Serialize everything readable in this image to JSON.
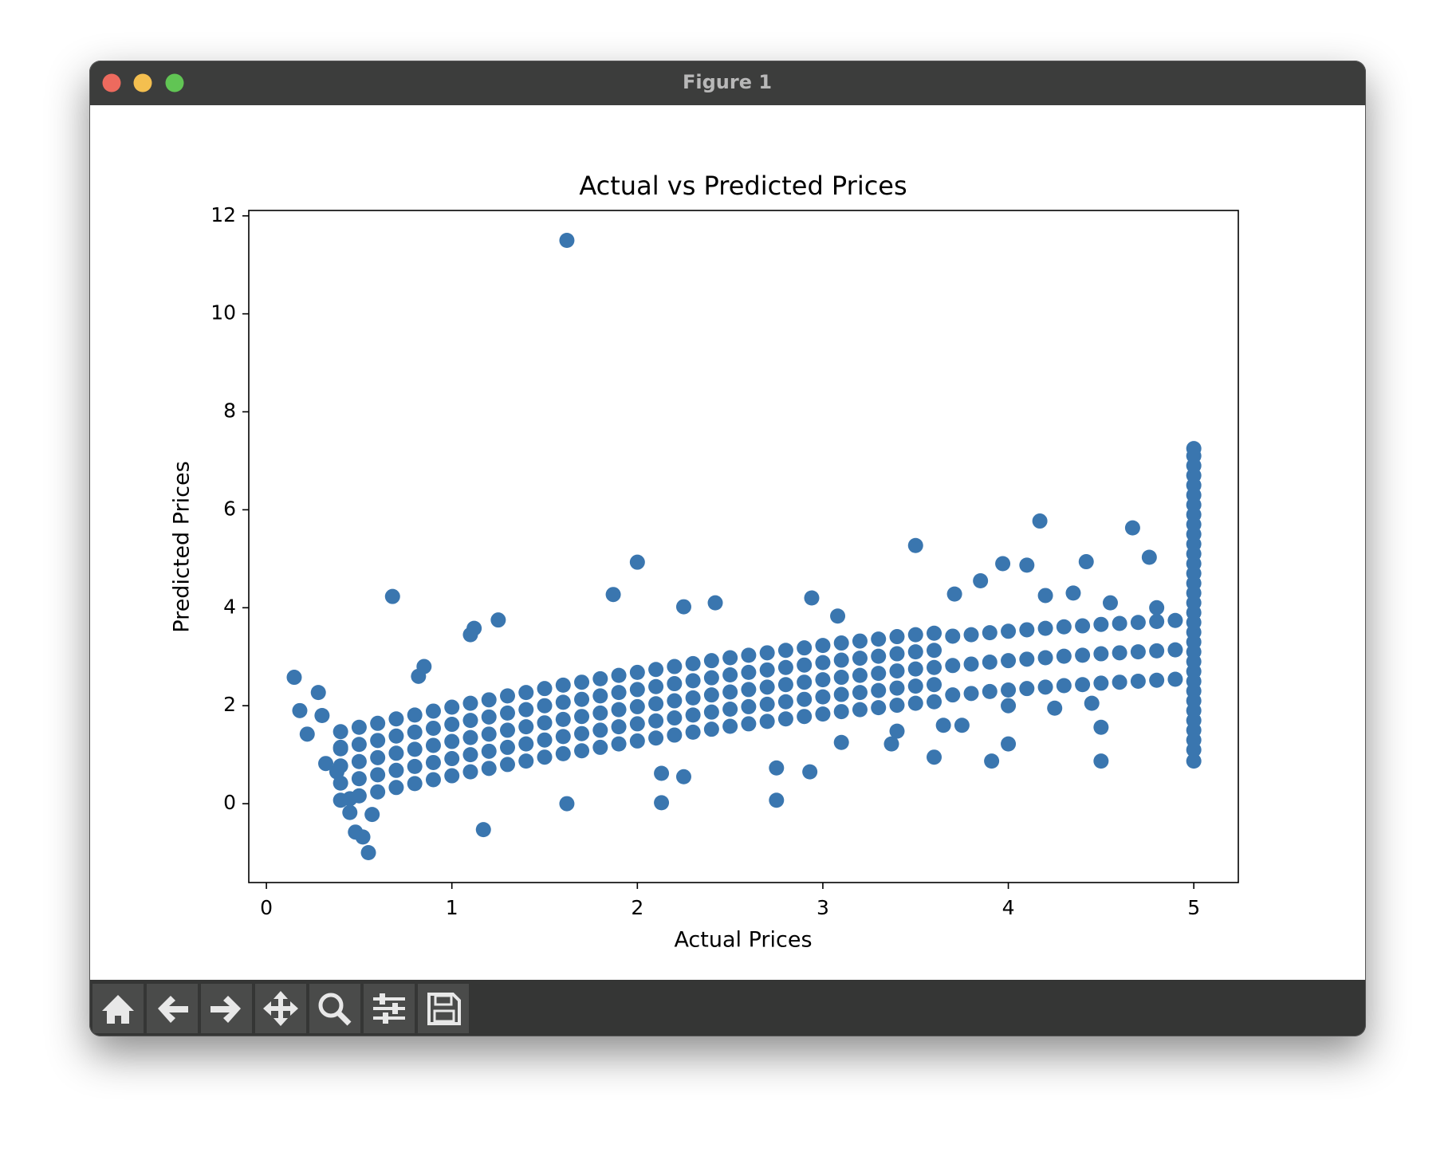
{
  "window": {
    "title": "Figure 1"
  },
  "chart_data": {
    "type": "scatter",
    "title": "Actual vs Predicted Prices",
    "x_label": "Actual Prices",
    "y_label": "Predicted Prices",
    "color": "#3a76af",
    "xlim": [
      -0.095,
      5.24
    ],
    "ylim": [
      -1.61,
      12.11
    ],
    "xticks": [
      0,
      1,
      2,
      3,
      4,
      5
    ],
    "yticks": [
      0,
      2,
      4,
      6,
      8,
      10,
      12
    ],
    "x": [
      0.4,
      0.4,
      0.4,
      0.4,
      0.4,
      0.5,
      0.5,
      0.5,
      0.5,
      0.5,
      0.6,
      0.6,
      0.6,
      0.6,
      0.6,
      0.7,
      0.7,
      0.7,
      0.7,
      0.7,
      0.8,
      0.8,
      0.8,
      0.8,
      0.8,
      0.9,
      0.9,
      0.9,
      0.9,
      0.9,
      1.0,
      1.0,
      1.0,
      1.0,
      1.0,
      1.1,
      1.1,
      1.1,
      1.1,
      1.1,
      1.2,
      1.2,
      1.2,
      1.2,
      1.2,
      1.3,
      1.3,
      1.3,
      1.3,
      1.3,
      1.4,
      1.4,
      1.4,
      1.4,
      1.4,
      1.5,
      1.5,
      1.5,
      1.5,
      1.5,
      1.6,
      1.6,
      1.6,
      1.6,
      1.6,
      1.7,
      1.7,
      1.7,
      1.7,
      1.7,
      1.8,
      1.8,
      1.8,
      1.8,
      1.8,
      1.9,
      1.9,
      1.9,
      1.9,
      1.9,
      2.0,
      2.0,
      2.0,
      2.0,
      2.0,
      2.1,
      2.1,
      2.1,
      2.1,
      2.1,
      2.2,
      2.2,
      2.2,
      2.2,
      2.2,
      2.3,
      2.3,
      2.3,
      2.3,
      2.3,
      2.4,
      2.4,
      2.4,
      2.4,
      2.4,
      2.5,
      2.5,
      2.5,
      2.5,
      2.5,
      2.6,
      2.6,
      2.6,
      2.6,
      2.6,
      2.7,
      2.7,
      2.7,
      2.7,
      2.7,
      2.8,
      2.8,
      2.8,
      2.8,
      2.8,
      2.9,
      2.9,
      2.9,
      2.9,
      2.9,
      3.0,
      3.0,
      3.0,
      3.0,
      3.0,
      3.1,
      3.1,
      3.1,
      3.1,
      3.1,
      3.2,
      3.2,
      3.2,
      3.2,
      3.2,
      3.3,
      3.3,
      3.3,
      3.3,
      3.3,
      3.4,
      3.4,
      3.4,
      3.4,
      3.4,
      3.5,
      3.5,
      3.5,
      3.5,
      3.5,
      3.6,
      3.6,
      3.6,
      3.6,
      3.6,
      3.7,
      3.7,
      3.7,
      3.8,
      3.8,
      3.8,
      3.9,
      3.9,
      3.9,
      4.0,
      4.0,
      4.0,
      4.1,
      4.1,
      4.1,
      4.2,
      4.2,
      4.2,
      4.3,
      4.3,
      4.3,
      4.4,
      4.4,
      4.4,
      4.5,
      4.5,
      4.5,
      4.6,
      4.6,
      4.6,
      4.7,
      4.7,
      4.7,
      4.8,
      4.8,
      4.8,
      4.9,
      4.9,
      4.9,
      4.2,
      4.35,
      4.55,
      4.8,
      4.0,
      4.25,
      4.45,
      3.75,
      3.65,
      1.62,
      0.15,
      0.18,
      0.22,
      0.28,
      0.3,
      0.32,
      0.38,
      0.4,
      0.45,
      0.45,
      0.48,
      0.52,
      0.55,
      0.57,
      0.68,
      0.85,
      0.82,
      1.1,
      1.12,
      1.25,
      1.17,
      1.62,
      1.87,
      2.0,
      2.25,
      2.42,
      2.13,
      2.13,
      2.25,
      2.75,
      2.75,
      2.93,
      2.94,
      3.08,
      3.5,
      4.17,
      4.1,
      3.97,
      4.42,
      4.67,
      4.76,
      3.6,
      3.91,
      4.0,
      4.5,
      4.5,
      3.1,
      3.4,
      3.37,
      3.85,
      3.71,
      5,
      5,
      5,
      5,
      5,
      5,
      5,
      5,
      5,
      5,
      5,
      5,
      5,
      5,
      5,
      5,
      5,
      5,
      5,
      5,
      5,
      5,
      5,
      5,
      5,
      5,
      5,
      5,
      5,
      5,
      5,
      5,
      5
    ],
    "values": [
      0.07,
      0.42,
      0.77,
      1.12,
      1.47,
      0.16,
      0.51,
      0.86,
      1.21,
      1.56,
      0.24,
      0.59,
      0.94,
      1.29,
      1.64,
      0.33,
      0.68,
      1.03,
      1.38,
      1.73,
      0.41,
      0.76,
      1.11,
      1.46,
      1.81,
      0.49,
      0.84,
      1.19,
      1.54,
      1.89,
      0.57,
      0.92,
      1.27,
      1.62,
      1.97,
      0.65,
      1.0,
      1.35,
      1.7,
      2.05,
      0.72,
      1.07,
      1.42,
      1.77,
      2.12,
      0.8,
      1.15,
      1.5,
      1.85,
      2.2,
      0.87,
      1.22,
      1.57,
      1.92,
      2.27,
      0.95,
      1.3,
      1.65,
      2.0,
      2.35,
      1.02,
      1.37,
      1.72,
      2.07,
      2.42,
      1.08,
      1.43,
      1.78,
      2.13,
      2.48,
      1.15,
      1.5,
      1.85,
      2.2,
      2.55,
      1.22,
      1.57,
      1.92,
      2.27,
      2.62,
      1.28,
      1.63,
      1.98,
      2.33,
      2.68,
      1.34,
      1.69,
      2.04,
      2.39,
      2.74,
      1.4,
      1.75,
      2.1,
      2.45,
      2.8,
      1.46,
      1.81,
      2.16,
      2.51,
      2.86,
      1.52,
      1.87,
      2.22,
      2.57,
      2.92,
      1.58,
      1.93,
      2.28,
      2.63,
      2.98,
      1.63,
      1.98,
      2.33,
      2.68,
      3.03,
      1.68,
      2.03,
      2.38,
      2.73,
      3.08,
      1.73,
      2.08,
      2.43,
      2.78,
      3.13,
      1.78,
      2.13,
      2.48,
      2.83,
      3.18,
      1.83,
      2.18,
      2.53,
      2.88,
      3.23,
      1.88,
      2.23,
      2.58,
      2.93,
      3.28,
      1.92,
      2.27,
      2.62,
      2.97,
      3.32,
      1.96,
      2.31,
      2.66,
      3.01,
      3.36,
      2.01,
      2.36,
      2.71,
      3.06,
      3.41,
      2.05,
      2.4,
      2.75,
      3.1,
      3.45,
      2.08,
      2.43,
      2.78,
      3.13,
      3.48,
      2.22,
      2.82,
      3.42,
      2.25,
      2.85,
      3.45,
      2.29,
      2.89,
      3.49,
      2.32,
      2.92,
      3.52,
      2.35,
      2.95,
      3.55,
      2.38,
      2.98,
      3.58,
      2.41,
      3.01,
      3.61,
      2.43,
      3.03,
      3.63,
      2.46,
      3.06,
      3.66,
      2.48,
      3.08,
      3.68,
      2.5,
      3.1,
      3.7,
      2.52,
      3.12,
      3.72,
      2.54,
      3.14,
      3.74,
      4.25,
      4.3,
      4.1,
      4.0,
      2.0,
      1.95,
      2.05,
      1.6,
      1.6,
      11.5,
      2.58,
      1.9,
      1.42,
      2.27,
      1.8,
      0.82,
      0.65,
      1.15,
      0.1,
      -0.18,
      -0.58,
      -0.68,
      -1.0,
      -0.22,
      4.23,
      2.8,
      2.6,
      3.45,
      3.58,
      3.75,
      -0.53,
      0.0,
      4.27,
      4.93,
      4.02,
      4.1,
      0.02,
      0.62,
      0.55,
      0.07,
      0.73,
      0.65,
      4.2,
      3.83,
      5.27,
      5.77,
      4.87,
      4.9,
      4.94,
      5.63,
      5.03,
      0.95,
      0.87,
      1.22,
      0.87,
      1.56,
      1.25,
      1.48,
      1.22,
      4.55,
      4.28,
      0.87,
      1.1,
      1.3,
      1.5,
      1.7,
      1.9,
      2.1,
      2.3,
      2.5,
      2.7,
      2.9,
      3.1,
      3.3,
      3.5,
      3.7,
      3.9,
      4.1,
      4.3,
      4.5,
      4.7,
      4.9,
      5.1,
      5.3,
      5.5,
      5.7,
      5.9,
      6.1,
      6.3,
      6.5,
      6.7,
      6.9,
      7.1,
      7.25
    ]
  }
}
